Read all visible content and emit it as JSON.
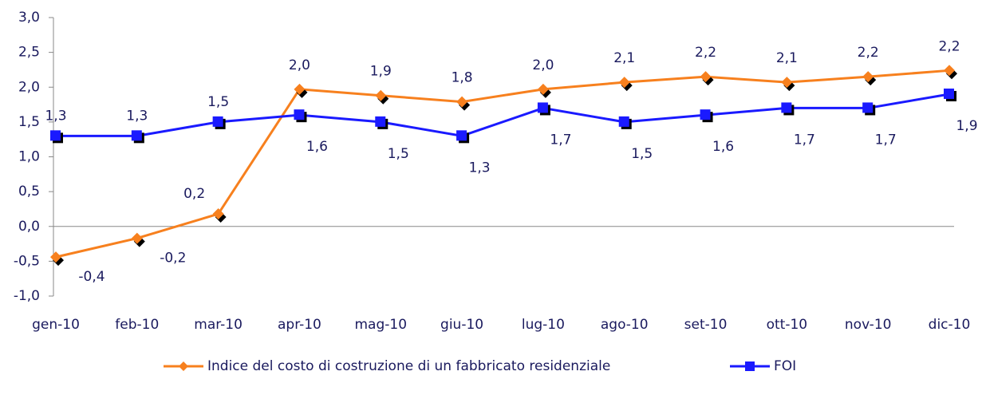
{
  "chart_data": {
    "type": "line",
    "categories": [
      "gen-10",
      "feb-10",
      "mar-10",
      "apr-10",
      "mag-10",
      "giu-10",
      "lug-10",
      "ago-10",
      "set-10",
      "ott-10",
      "nov-10",
      "dic-10"
    ],
    "series": [
      {
        "name": "Indice del costo di costruzione di un fabbricato residenziale",
        "color": "#f7801e",
        "marker": "diamond",
        "values": [
          -0.44,
          -0.17,
          0.18,
          1.97,
          1.88,
          1.79,
          1.97,
          2.07,
          2.15,
          2.07,
          2.15,
          2.24
        ],
        "value_labels": [
          "-0,4",
          "-0,2",
          "0,2",
          "2,0",
          "1,9",
          "1,8",
          "2,0",
          "2,1",
          "2,2",
          "2,1",
          "2,2",
          "2,2"
        ]
      },
      {
        "name": "FOI",
        "color": "#1a1aff",
        "marker": "square",
        "values": [
          1.3,
          1.3,
          1.5,
          1.6,
          1.5,
          1.3,
          1.7,
          1.5,
          1.6,
          1.7,
          1.7,
          1.9
        ],
        "value_labels": [
          "1,3",
          "1,3",
          "1,5",
          "1,6",
          "1,5",
          "1,3",
          "1,7",
          "1,5",
          "1,6",
          "1,7",
          "1,7",
          "1,9"
        ]
      }
    ],
    "ylim": [
      -1,
      3
    ],
    "yticks": [
      {
        "value": -1,
        "label": "-1,0"
      },
      {
        "value": -0.5,
        "label": "-0,5"
      },
      {
        "value": 0,
        "label": "0,0"
      },
      {
        "value": 0.5,
        "label": "0,5"
      },
      {
        "value": 1,
        "label": "1,0"
      },
      {
        "value": 1.5,
        "label": "1,5"
      },
      {
        "value": 2,
        "label": "2,0"
      },
      {
        "value": 2.5,
        "label": "2,5"
      },
      {
        "value": 3,
        "label": "3,0"
      }
    ],
    "legend": "bottom"
  }
}
